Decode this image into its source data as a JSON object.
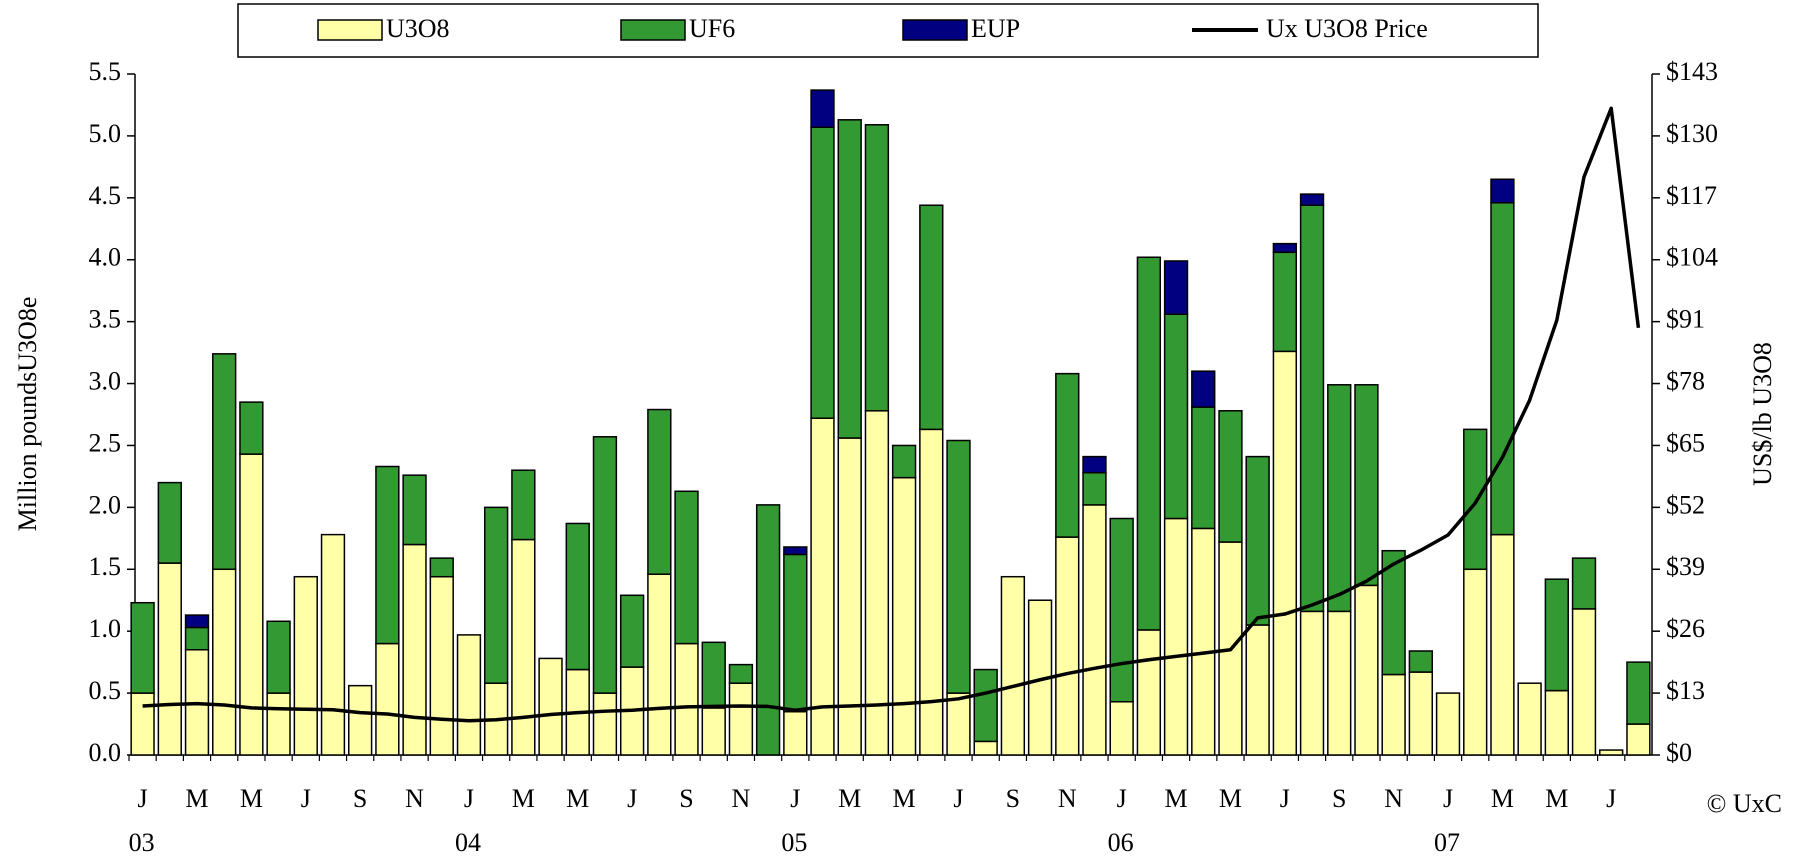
{
  "chart_data": {
    "type": "bar",
    "stacked": true,
    "categories": [
      "J",
      null,
      "M",
      null,
      "M",
      null,
      "J",
      null,
      "S",
      null,
      "N",
      null,
      "J",
      null,
      "M",
      null,
      "M",
      null,
      "J",
      null,
      "S",
      null,
      "N",
      null,
      "J",
      null,
      "M",
      null,
      "M",
      null,
      "J",
      null,
      "S",
      null,
      "N",
      null,
      "J",
      null,
      "M",
      null,
      "M",
      null,
      "J",
      null,
      "S",
      null,
      "N",
      null,
      "J",
      null,
      "M",
      null,
      "M",
      null,
      "J",
      null
    ],
    "x_group_labels": [
      "03",
      "04",
      "05",
      "06",
      "07"
    ],
    "y_label": "Million poundsU3O8e",
    "y2_label": "US$/lb U3O8",
    "credit": "© UxC",
    "ylim": [
      0,
      5.5
    ],
    "yticks": [
      {
        "value": 0,
        "label": "0.0"
      },
      {
        "value": 0.5,
        "label": "0.5"
      },
      {
        "value": 1,
        "label": "1.0"
      },
      {
        "value": 1.5,
        "label": "1.5"
      },
      {
        "value": 2,
        "label": "2.0"
      },
      {
        "value": 2.5,
        "label": "2.5"
      },
      {
        "value": 3,
        "label": "3.0"
      },
      {
        "value": 3.5,
        "label": "3.5"
      },
      {
        "value": 4,
        "label": "4.0"
      },
      {
        "value": 4.5,
        "label": "4.5"
      },
      {
        "value": 5,
        "label": "5.0"
      },
      {
        "value": 5.5,
        "label": "5.5"
      }
    ],
    "y2lim": [
      0,
      143
    ],
    "y2ticks": [
      {
        "value": 0,
        "label": "$0"
      },
      {
        "value": 13,
        "label": "$13"
      },
      {
        "value": 26,
        "label": "$26"
      },
      {
        "value": 39,
        "label": "$39"
      },
      {
        "value": 52,
        "label": "$52"
      },
      {
        "value": 65,
        "label": "$65"
      },
      {
        "value": 78,
        "label": "$78"
      },
      {
        "value": 91,
        "label": "$91"
      },
      {
        "value": 104,
        "label": "$104"
      },
      {
        "value": 117,
        "label": "$117"
      },
      {
        "value": 130,
        "label": "$130"
      },
      {
        "value": 143,
        "label": "$143"
      }
    ],
    "grid": false,
    "legend": "top",
    "series": [
      {
        "name": "U3O8",
        "color": "#ffffa8",
        "type": "bar",
        "values": [
          0.5,
          1.55,
          0.85,
          1.5,
          2.43,
          0.5,
          1.44,
          1.78,
          0.56,
          0.9,
          1.7,
          1.44,
          0.97,
          0.58,
          1.74,
          0.78,
          0.69,
          0.5,
          0.71,
          1.46,
          0.9,
          0.38,
          0.58,
          0,
          0.35,
          2.72,
          2.56,
          2.78,
          2.24,
          2.63,
          0.5,
          0.11,
          1.44,
          1.25,
          1.76,
          2.02,
          0.43,
          1.01,
          1.91,
          1.83,
          1.72,
          1.05,
          3.26,
          1.16,
          1.16,
          1.37,
          0.65,
          0.67,
          0.5,
          1.5,
          1.78,
          0.58,
          0.52,
          1.18,
          0.04,
          0.25
        ]
      },
      {
        "name": "UF6",
        "color": "#339933",
        "type": "bar",
        "values": [
          0.73,
          0.65,
          0.18,
          1.74,
          0.42,
          0.58,
          0,
          0,
          0,
          1.43,
          0.56,
          0.15,
          0,
          1.42,
          0.56,
          0,
          1.18,
          2.07,
          0.58,
          1.33,
          1.23,
          0.53,
          0.15,
          2.02,
          1.27,
          2.35,
          2.57,
          2.31,
          0.26,
          1.81,
          2.04,
          0.58,
          0,
          0,
          1.32,
          0.26,
          1.48,
          3.01,
          1.65,
          0.98,
          1.06,
          1.36,
          0.8,
          3.28,
          1.83,
          1.62,
          1.0,
          0.17,
          0,
          1.13,
          2.68,
          0,
          0.9,
          0.41,
          0,
          0.5
        ]
      },
      {
        "name": "EUP",
        "color": "#000080",
        "type": "bar",
        "values": [
          0,
          0,
          0.1,
          0,
          0,
          0,
          0,
          0,
          0,
          0,
          0,
          0,
          0,
          0,
          0,
          0,
          0,
          0,
          0,
          0,
          0,
          0,
          0,
          0,
          0.06,
          0.3,
          0,
          0,
          0,
          0,
          0,
          0,
          0,
          0,
          0,
          0.13,
          0,
          0,
          0.43,
          0.29,
          0,
          0,
          0.07,
          0.09,
          0,
          0,
          0,
          0,
          0,
          0,
          0.19,
          0,
          0,
          0,
          0,
          0
        ]
      },
      {
        "name": "Ux U3O8 Price",
        "color": "#000000",
        "type": "line",
        "axis": "y2",
        "values": [
          10.3,
          10.6,
          10.8,
          10.5,
          9.9,
          9.7,
          9.6,
          9.5,
          8.9,
          8.6,
          7.9,
          7.5,
          7.2,
          7.4,
          7.9,
          8.5,
          8.9,
          9.2,
          9.4,
          9.8,
          10.1,
          10.2,
          10.3,
          10.2,
          9.4,
          10.1,
          10.3,
          10.5,
          10.8,
          11.2,
          11.8,
          13.0,
          14.4,
          15.8,
          17.1,
          18.2,
          19.2,
          20.0,
          20.7,
          21.4,
          22.1,
          28.8,
          29.6,
          31.5,
          33.7,
          36.5,
          40.1,
          43.0,
          46.2,
          52.9,
          62.5,
          74.5,
          91.3,
          121.4,
          135.8,
          89.7
        ]
      }
    ]
  }
}
